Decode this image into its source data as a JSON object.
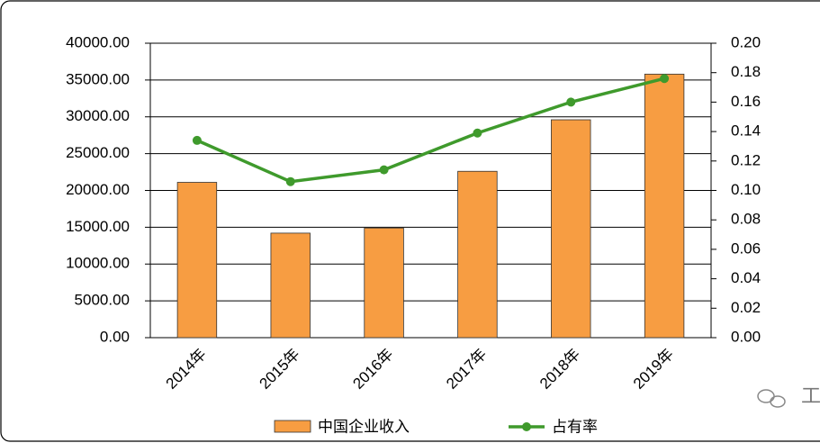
{
  "chart_data": {
    "type": "bar-line",
    "categories": [
      "2014年",
      "2015年",
      "2016年",
      "2017年",
      "2018年",
      "2019年"
    ],
    "series": [
      {
        "name": "中国企业收入",
        "type": "bar",
        "color": "#f79d42",
        "values": [
          21100,
          14200,
          14900,
          22600,
          29600,
          35800
        ]
      },
      {
        "name": "占有率",
        "type": "line",
        "axis": "y2",
        "color": "#3f9a2c",
        "values": [
          0.134,
          0.106,
          0.114,
          0.139,
          0.16,
          0.176
        ]
      }
    ],
    "ylim": [
      0,
      40000
    ],
    "yticks": [
      {
        "value": 0,
        "label": "0.00"
      },
      {
        "value": 5000,
        "label": "5000.00"
      },
      {
        "value": 10000,
        "label": "10000.00"
      },
      {
        "value": 15000,
        "label": "15000.00"
      },
      {
        "value": 20000,
        "label": "20000.00"
      },
      {
        "value": 25000,
        "label": "25000.00"
      },
      {
        "value": 30000,
        "label": "30000.00"
      },
      {
        "value": 35000,
        "label": "35000.00"
      },
      {
        "value": 40000,
        "label": "40000.00"
      }
    ],
    "y2lim": [
      0,
      0.2
    ],
    "y2ticks": [
      {
        "value": 0,
        "label": "0.00"
      },
      {
        "value": 0.02,
        "label": "0.02"
      },
      {
        "value": 0.04,
        "label": "0.04"
      },
      {
        "value": 0.06,
        "label": "0.06"
      },
      {
        "value": 0.08,
        "label": "0.08"
      },
      {
        "value": 0.1,
        "label": "0.10"
      },
      {
        "value": 0.12,
        "label": "0.12"
      },
      {
        "value": 0.14,
        "label": "0.14"
      },
      {
        "value": 0.16,
        "label": "0.16"
      },
      {
        "value": 0.18,
        "label": "0.18"
      },
      {
        "value": 0.2,
        "label": "0.20"
      }
    ],
    "grid": true,
    "legend": "bottom",
    "watermark": "工"
  }
}
